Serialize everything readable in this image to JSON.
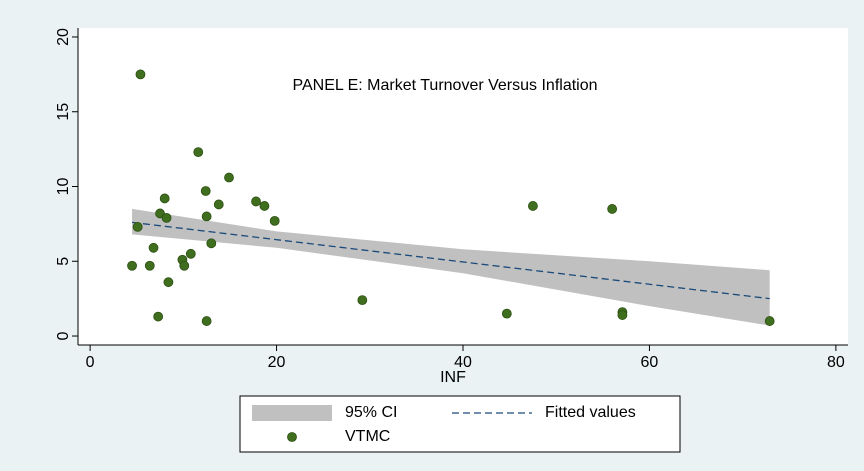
{
  "chart_data": {
    "type": "scatter",
    "title": "PANEL E: Market Turnover Versus Inflation",
    "x_label": "INF",
    "xlim": [
      -1.3,
      81.3
    ],
    "ylim": [
      -0.6,
      20.6
    ],
    "xticks": [
      0,
      20,
      40,
      60,
      80
    ],
    "yticks": [
      0,
      5,
      10,
      15,
      20
    ],
    "grid": false,
    "legend": "bottom",
    "series": [
      {
        "name": "95% CI",
        "type": "band",
        "color": "#c0c0c0",
        "x": [
          4.5,
          20,
          40,
          60,
          72.9
        ],
        "lower": [
          6.8,
          5.9,
          4.2,
          2.0,
          0.7
        ],
        "upper": [
          8.5,
          7.0,
          5.8,
          5.0,
          4.4
        ]
      },
      {
        "name": "Fitted values",
        "type": "line",
        "color": "#1a4a7a",
        "dashed": true,
        "x": [
          4.5,
          72.9
        ],
        "values": [
          7.6,
          2.5
        ]
      },
      {
        "name": "VTMC",
        "type": "scatter",
        "color": "#3f6f1e",
        "x": [
          5.4,
          11.6,
          14.9,
          12.4,
          8.0,
          17.8,
          18.7,
          13.8,
          7.5,
          8.2,
          12.5,
          19.8,
          5.1,
          47.5,
          56.0,
          6.8,
          13.0,
          10.8,
          9.9,
          4.5,
          6.4,
          10.1,
          8.4,
          29.2,
          44.7,
          57.1,
          57.1,
          7.3,
          12.5,
          72.9
        ],
        "values": [
          17.5,
          12.3,
          10.6,
          9.7,
          9.2,
          9.0,
          8.7,
          8.8,
          8.2,
          7.9,
          8.0,
          7.7,
          7.3,
          8.7,
          8.5,
          5.9,
          6.2,
          5.5,
          5.1,
          4.7,
          4.7,
          4.7,
          3.6,
          2.4,
          1.5,
          1.6,
          1.4,
          1.3,
          1.0,
          1.0
        ]
      }
    ]
  }
}
